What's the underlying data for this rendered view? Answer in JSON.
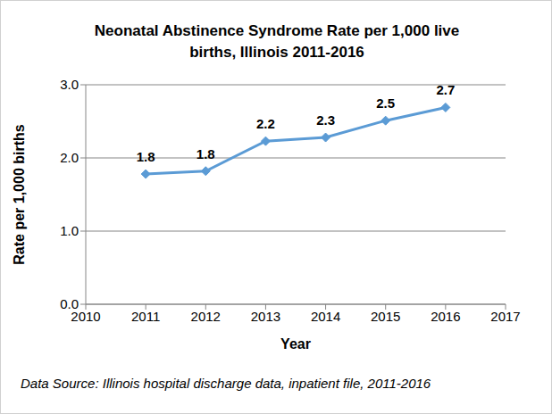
{
  "chart_data": {
    "type": "line",
    "title": "Neonatal Abstinence Syndrome Rate per 1,000 live births, Illinois 2011-2016",
    "x_label": "Year",
    "y_label": "Rate per 1,000 births",
    "source": "Data Source: Illinois hospital discharge data, inpatient file, 2011-2016",
    "x": [
      2011,
      2012,
      2013,
      2014,
      2015,
      2016
    ],
    "values": [
      1.78,
      1.82,
      2.23,
      2.28,
      2.51,
      2.69
    ],
    "value_labels": [
      "1.8",
      "1.8",
      "2.2",
      "2.3",
      "2.5",
      "2.7"
    ],
    "color": "#5b9bd5",
    "marker": "diamond",
    "xlim": [
      2010,
      2017
    ],
    "xticks": [
      2010,
      2011,
      2012,
      2013,
      2014,
      2015,
      2016,
      2017
    ],
    "ylim": [
      0,
      3
    ],
    "yticks": [
      {
        "value": 0,
        "label": "0.0"
      },
      {
        "value": 1,
        "label": "1.0"
      },
      {
        "value": 2,
        "label": "2.0"
      },
      {
        "value": 3,
        "label": "3.0"
      }
    ],
    "grid": true,
    "data_labels": true
  }
}
